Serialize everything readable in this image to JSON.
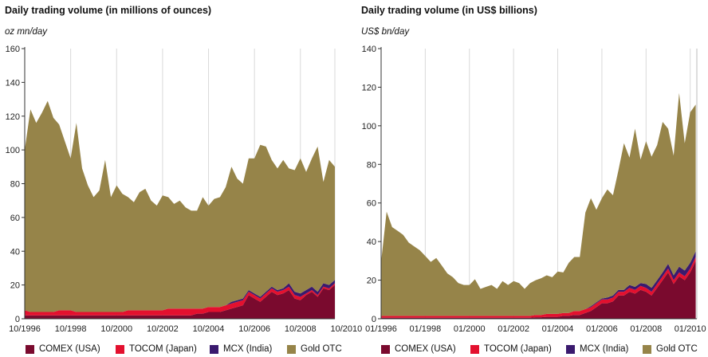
{
  "chart_data": [
    {
      "type": "area",
      "stacked": true,
      "title": "Daily trading volume (in millions of ounces)",
      "ylabel": "oz mn/day",
      "ylim": [
        0,
        160
      ],
      "yticks": [
        0,
        20,
        40,
        60,
        80,
        100,
        120,
        140,
        160
      ],
      "xlim": [
        1996.75,
        2010.25
      ],
      "xticks": [
        {
          "label": "10/1996",
          "x": 1996.75
        },
        {
          "label": "10/1998",
          "x": 1998.75
        },
        {
          "label": "10/2000",
          "x": 2000.75
        },
        {
          "label": "10/2002",
          "x": 2002.75
        },
        {
          "label": "10/2004",
          "x": 2004.75
        },
        {
          "label": "10/2006",
          "x": 2006.75
        },
        {
          "label": "10/2008",
          "x": 2008.75
        },
        {
          "label": "10/2010",
          "x": 2010.75
        }
      ],
      "grid": "vertical",
      "x": [
        1996.75,
        1997.0,
        1997.25,
        1997.5,
        1997.75,
        1998.0,
        1998.25,
        1998.5,
        1998.75,
        1999.0,
        1999.25,
        1999.5,
        1999.75,
        2000.0,
        2000.25,
        2000.5,
        2000.75,
        2001.0,
        2001.25,
        2001.5,
        2001.75,
        2002.0,
        2002.25,
        2002.5,
        2002.75,
        2003.0,
        2003.25,
        2003.5,
        2003.75,
        2004.0,
        2004.25,
        2004.5,
        2004.75,
        2005.0,
        2005.25,
        2005.5,
        2005.75,
        2006.0,
        2006.25,
        2006.5,
        2006.75,
        2007.0,
        2007.25,
        2007.5,
        2007.75,
        2008.0,
        2008.25,
        2008.5,
        2008.75,
        2009.0,
        2009.25,
        2009.5,
        2009.75,
        2010.0,
        2010.25
      ],
      "series": [
        {
          "name": "COMEX (USA)",
          "color": "#7a0a2e",
          "values": [
            2,
            2,
            2,
            2,
            2,
            2,
            2,
            2,
            2,
            2,
            2,
            2,
            2,
            2,
            2,
            2,
            2,
            2,
            2,
            2,
            2,
            2,
            2,
            2,
            2,
            2,
            2,
            2,
            2,
            2,
            3,
            3,
            4,
            4,
            4,
            5,
            6,
            7,
            8,
            14,
            12,
            10,
            13,
            16,
            14,
            15,
            17,
            12,
            11,
            14,
            16,
            13,
            18,
            17,
            20
          ]
        },
        {
          "name": "TOCOM (Japan)",
          "color": "#e3102e",
          "values": [
            3,
            2,
            2,
            2,
            2,
            2,
            3,
            3,
            3,
            2,
            2,
            2,
            2,
            2,
            2,
            2,
            2,
            2,
            3,
            3,
            3,
            3,
            3,
            3,
            3,
            4,
            4,
            4,
            4,
            4,
            3,
            3,
            3,
            3,
            3,
            3,
            3,
            3,
            3,
            2,
            2,
            2,
            2,
            2,
            2,
            2,
            2,
            2,
            2,
            1,
            1,
            1,
            1,
            1,
            1
          ]
        },
        {
          "name": "MCX (India)",
          "color": "#3a1a6e",
          "values": [
            0,
            0,
            0,
            0,
            0,
            0,
            0,
            0,
            0,
            0,
            0,
            0,
            0,
            0,
            0,
            0,
            0,
            0,
            0,
            0,
            0,
            0,
            0,
            0,
            0,
            0,
            0,
            0,
            0,
            0,
            0,
            0,
            0,
            0,
            0,
            0,
            1,
            1,
            1,
            1,
            1,
            1,
            1,
            1,
            1,
            1,
            2,
            2,
            2,
            2,
            2,
            2,
            2,
            2,
            2
          ]
        },
        {
          "name": "Gold OTC",
          "color": "#968449",
          "values": [
            95,
            120,
            112,
            118,
            125,
            115,
            110,
            100,
            90,
            112,
            85,
            75,
            68,
            72,
            90,
            68,
            75,
            70,
            67,
            64,
            70,
            72,
            65,
            62,
            68,
            66,
            62,
            64,
            60,
            58,
            58,
            66,
            60,
            64,
            65,
            70,
            80,
            72,
            68,
            78,
            80,
            90,
            86,
            75,
            72,
            76,
            68,
            72,
            80,
            70,
            76,
            86,
            60,
            74,
            67
          ]
        }
      ]
    },
    {
      "type": "area",
      "stacked": true,
      "title": "Daily trading volume (in US$ billions)",
      "ylabel": "US$ bn/day",
      "ylim": [
        0,
        140
      ],
      "yticks": [
        0,
        20,
        40,
        60,
        80,
        100,
        120,
        140
      ],
      "xlim": [
        1996.0,
        2010.3
      ],
      "xticks": [
        {
          "label": "01/1996",
          "x": 1996.0
        },
        {
          "label": "01/1998",
          "x": 1998.0
        },
        {
          "label": "01/2000",
          "x": 2000.0
        },
        {
          "label": "01/2002",
          "x": 2002.0
        },
        {
          "label": "01/2004",
          "x": 2004.0
        },
        {
          "label": "01/2006",
          "x": 2006.0
        },
        {
          "label": "01/2008",
          "x": 2008.0
        },
        {
          "label": "01/2010",
          "x": 2010.0
        }
      ],
      "grid": "vertical",
      "x": [
        1996.0,
        1996.25,
        1996.5,
        1996.75,
        1997.0,
        1997.25,
        1997.5,
        1997.75,
        1998.0,
        1998.25,
        1998.5,
        1998.75,
        1999.0,
        1999.25,
        1999.5,
        1999.75,
        2000.0,
        2000.25,
        2000.5,
        2000.75,
        2001.0,
        2001.25,
        2001.5,
        2001.75,
        2002.0,
        2002.25,
        2002.5,
        2002.75,
        2003.0,
        2003.25,
        2003.5,
        2003.75,
        2004.0,
        2004.25,
        2004.5,
        2004.75,
        2005.0,
        2005.25,
        2005.5,
        2005.75,
        2006.0,
        2006.25,
        2006.5,
        2006.75,
        2007.0,
        2007.25,
        2007.5,
        2007.75,
        2008.0,
        2008.25,
        2008.5,
        2008.75,
        2009.0,
        2009.25,
        2009.5,
        2009.75,
        2010.0,
        2010.25
      ],
      "series": [
        {
          "name": "COMEX (USA)",
          "color": "#7a0a2e",
          "values": [
            0.5,
            0.5,
            0.5,
            0.5,
            0.5,
            0.5,
            0.5,
            0.5,
            0.5,
            0.5,
            0.5,
            0.5,
            0.5,
            0.5,
            0.5,
            0.5,
            0.5,
            0.5,
            0.5,
            0.5,
            0.5,
            0.5,
            0.5,
            0.5,
            0.5,
            0.5,
            0.5,
            0.5,
            0.8,
            0.8,
            1,
            1,
            1,
            1.5,
            1.5,
            2,
            2,
            3,
            4,
            6,
            8,
            8,
            9,
            12,
            12,
            14,
            13,
            15,
            14,
            12,
            16,
            20,
            24,
            18,
            22,
            20,
            24,
            30
          ]
        },
        {
          "name": "TOCOM (Japan)",
          "color": "#e3102e",
          "values": [
            1,
            1,
            1,
            1,
            1,
            1,
            1,
            1,
            1,
            1,
            1,
            1,
            1,
            1,
            1,
            1,
            1,
            1,
            1,
            1,
            1,
            1,
            1,
            1,
            1,
            1,
            1,
            1,
            1.2,
            1.2,
            1.5,
            1.5,
            1.5,
            1.5,
            1.5,
            2,
            2,
            2,
            2,
            2,
            2,
            2,
            2,
            2,
            2,
            2,
            2,
            2,
            2,
            2,
            2,
            2,
            2,
            2,
            2,
            2,
            2,
            2
          ]
        },
        {
          "name": "MCX (India)",
          "color": "#3a1a6e",
          "values": [
            0,
            0,
            0,
            0,
            0,
            0,
            0,
            0,
            0,
            0,
            0,
            0,
            0,
            0,
            0,
            0,
            0,
            0,
            0,
            0,
            0,
            0,
            0,
            0,
            0,
            0,
            0,
            0,
            0,
            0,
            0,
            0,
            0,
            0,
            0,
            0,
            0,
            0,
            0.5,
            0.5,
            0.5,
            1,
            1,
            1,
            1,
            1.5,
            1.5,
            1.5,
            2,
            2,
            2,
            2,
            2.5,
            2.5,
            3,
            3,
            3,
            3
          ]
        },
        {
          "name": "Gold OTC",
          "color": "#968449",
          "values": [
            28,
            54,
            46,
            44,
            42,
            38,
            36,
            34,
            31,
            28,
            30,
            26,
            22,
            20,
            17,
            16,
            16,
            19,
            14,
            15,
            16,
            14,
            18,
            16,
            18,
            17,
            14,
            17,
            18,
            19,
            20,
            19,
            22,
            21,
            26,
            28,
            28,
            50,
            56,
            48,
            52,
            56,
            52,
            62,
            76,
            66,
            82,
            64,
            74,
            68,
            70,
            78,
            70,
            62,
            90,
            66,
            78,
            76
          ]
        }
      ]
    }
  ]
}
